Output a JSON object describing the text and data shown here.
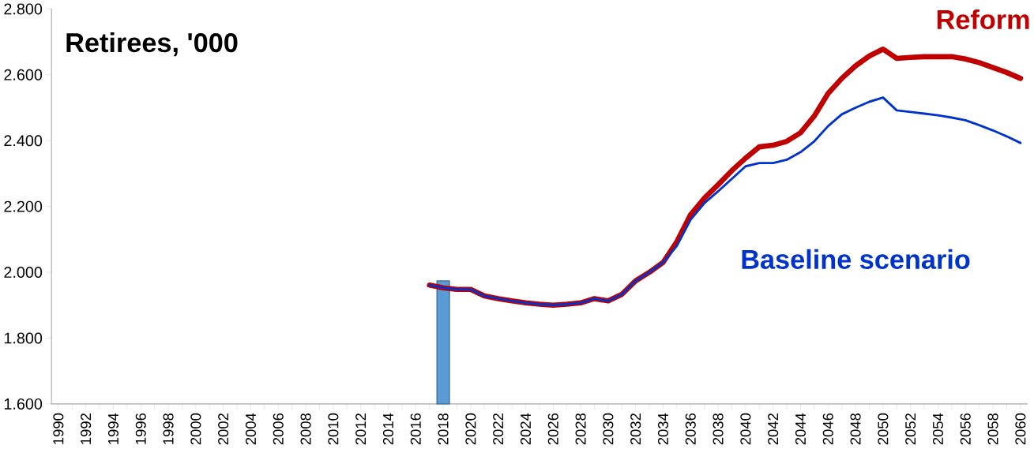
{
  "chart_data": {
    "type": "line",
    "title": "Retirees, '000",
    "categories": [
      "1990",
      null,
      "1992",
      null,
      "1994",
      null,
      "1996",
      null,
      "1998",
      null,
      "2000",
      null,
      "2002",
      null,
      "2004",
      null,
      "2006",
      null,
      "2008",
      null,
      "2010",
      null,
      "2012",
      null,
      "2014",
      null,
      "2016",
      null,
      "2018",
      null,
      "2020",
      null,
      "2022",
      null,
      "2024",
      null,
      "2026",
      null,
      "2028",
      null,
      "2030",
      null,
      "2032",
      null,
      "2034",
      null,
      "2036",
      null,
      "2038",
      null,
      "2040",
      null,
      "2042",
      null,
      "2044",
      null,
      "2046",
      null,
      "2048",
      null,
      "2050",
      null,
      "2052",
      null,
      "2054",
      null,
      "2056",
      null,
      "2058",
      null,
      "2060"
    ],
    "series": [
      {
        "type": "bar",
        "color": "#5b9bd5",
        "values": [
          null,
          null,
          null,
          null,
          null,
          null,
          null,
          null,
          null,
          null,
          null,
          null,
          null,
          null,
          null,
          null,
          null,
          null,
          null,
          null,
          null,
          null,
          null,
          null,
          null,
          null,
          null,
          null,
          1974,
          null,
          null,
          null,
          null,
          null,
          null,
          null,
          null,
          null,
          null,
          null,
          null,
          null,
          null,
          null,
          null,
          null,
          null,
          null,
          null,
          null,
          null,
          null,
          null,
          null,
          null,
          null,
          null,
          null,
          null,
          null,
          null,
          null,
          null,
          null,
          null,
          null,
          null,
          null,
          null,
          null,
          null
        ]
      },
      {
        "name": "Reform",
        "color": "#c00000",
        "values": [
          null,
          null,
          null,
          null,
          null,
          null,
          null,
          null,
          null,
          null,
          null,
          null,
          null,
          null,
          null,
          null,
          null,
          null,
          null,
          null,
          null,
          null,
          null,
          null,
          null,
          null,
          null,
          1961,
          1953,
          1948,
          1948,
          1928,
          1920,
          1913,
          1907,
          1903,
          1900,
          1903,
          1907,
          1920,
          1913,
          1933,
          1974,
          2000,
          2030,
          2093,
          2175,
          2225,
          2266,
          2309,
          2347,
          2381,
          2386,
          2398,
          2424,
          2475,
          2543,
          2589,
          2627,
          2657,
          2678,
          2650,
          2653,
          2655,
          2655,
          2655,
          2648,
          2637,
          2622,
          2607,
          2589
        ]
      },
      {
        "name": "Baseline scenario",
        "color": "#0033cc",
        "values": [
          null,
          null,
          null,
          null,
          null,
          null,
          null,
          null,
          null,
          null,
          null,
          null,
          null,
          null,
          null,
          null,
          null,
          null,
          null,
          null,
          null,
          null,
          null,
          null,
          null,
          null,
          null,
          1961,
          1953,
          1948,
          1948,
          1928,
          1920,
          1913,
          1907,
          1903,
          1900,
          1903,
          1907,
          1920,
          1913,
          1933,
          1974,
          2000,
          2030,
          2080,
          2160,
          2210,
          2246,
          2284,
          2322,
          2332,
          2332,
          2342,
          2365,
          2398,
          2444,
          2480,
          2500,
          2518,
          2531,
          2492,
          2487,
          2482,
          2477,
          2470,
          2462,
          2447,
          2431,
          2413,
          2393
        ]
      }
    ],
    "ylim": [
      1600,
      2800
    ],
    "yticks": [
      {
        "value": 1600,
        "label": "1.600"
      },
      {
        "value": 1800,
        "label": "1.800"
      },
      {
        "value": 2000,
        "label": "2.000"
      },
      {
        "value": 2200,
        "label": "2.200"
      },
      {
        "value": 2400,
        "label": "2.400"
      },
      {
        "value": 2600,
        "label": "2.600"
      },
      {
        "value": 2800,
        "label": "2.800"
      }
    ],
    "line_style": "solid",
    "marker": "none"
  }
}
